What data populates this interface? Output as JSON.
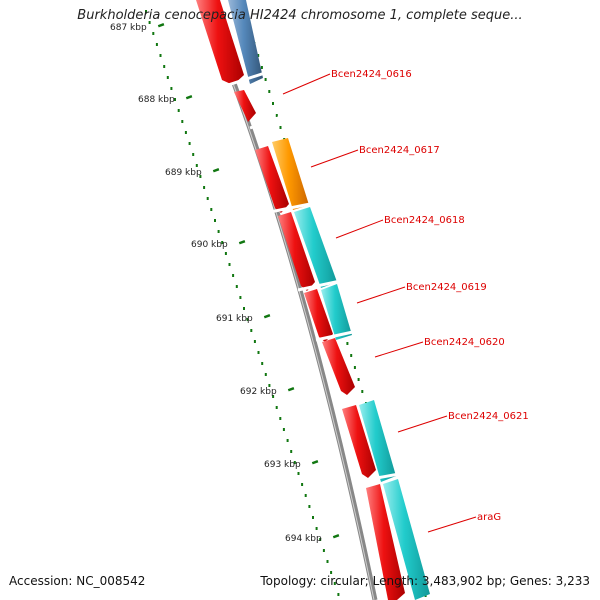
{
  "header": {
    "title": "Burkholderia cenocepacia HI2424 chromosome 1, complete seque..."
  },
  "footer": {
    "accession": "Accession: NC_008542",
    "topology": "Topology: circular; Length: 3,483,902 bp; Genes: 3,233"
  },
  "map": {
    "ruler_labels": [
      "687 kbp",
      "688 kbp",
      "689 kbp",
      "690 kbp",
      "691 kbp",
      "692 kbp",
      "693 kbp",
      "694 kbp"
    ],
    "gene_labels": [
      "Bcen2424_0616",
      "Bcen2424_0617",
      "Bcen2424_0618",
      "Bcen2424_0619",
      "Bcen2424_0620",
      "Bcen2424_0621",
      "araG"
    ],
    "colors": {
      "backbone": "#888888",
      "gene_red": "#ee1111",
      "cog_blue": "#5588bb",
      "cog_orange": "#ff9900",
      "cog_cyan": "#22cccc",
      "ruler_tick": "#117711",
      "label_text": "#dd0000"
    }
  }
}
